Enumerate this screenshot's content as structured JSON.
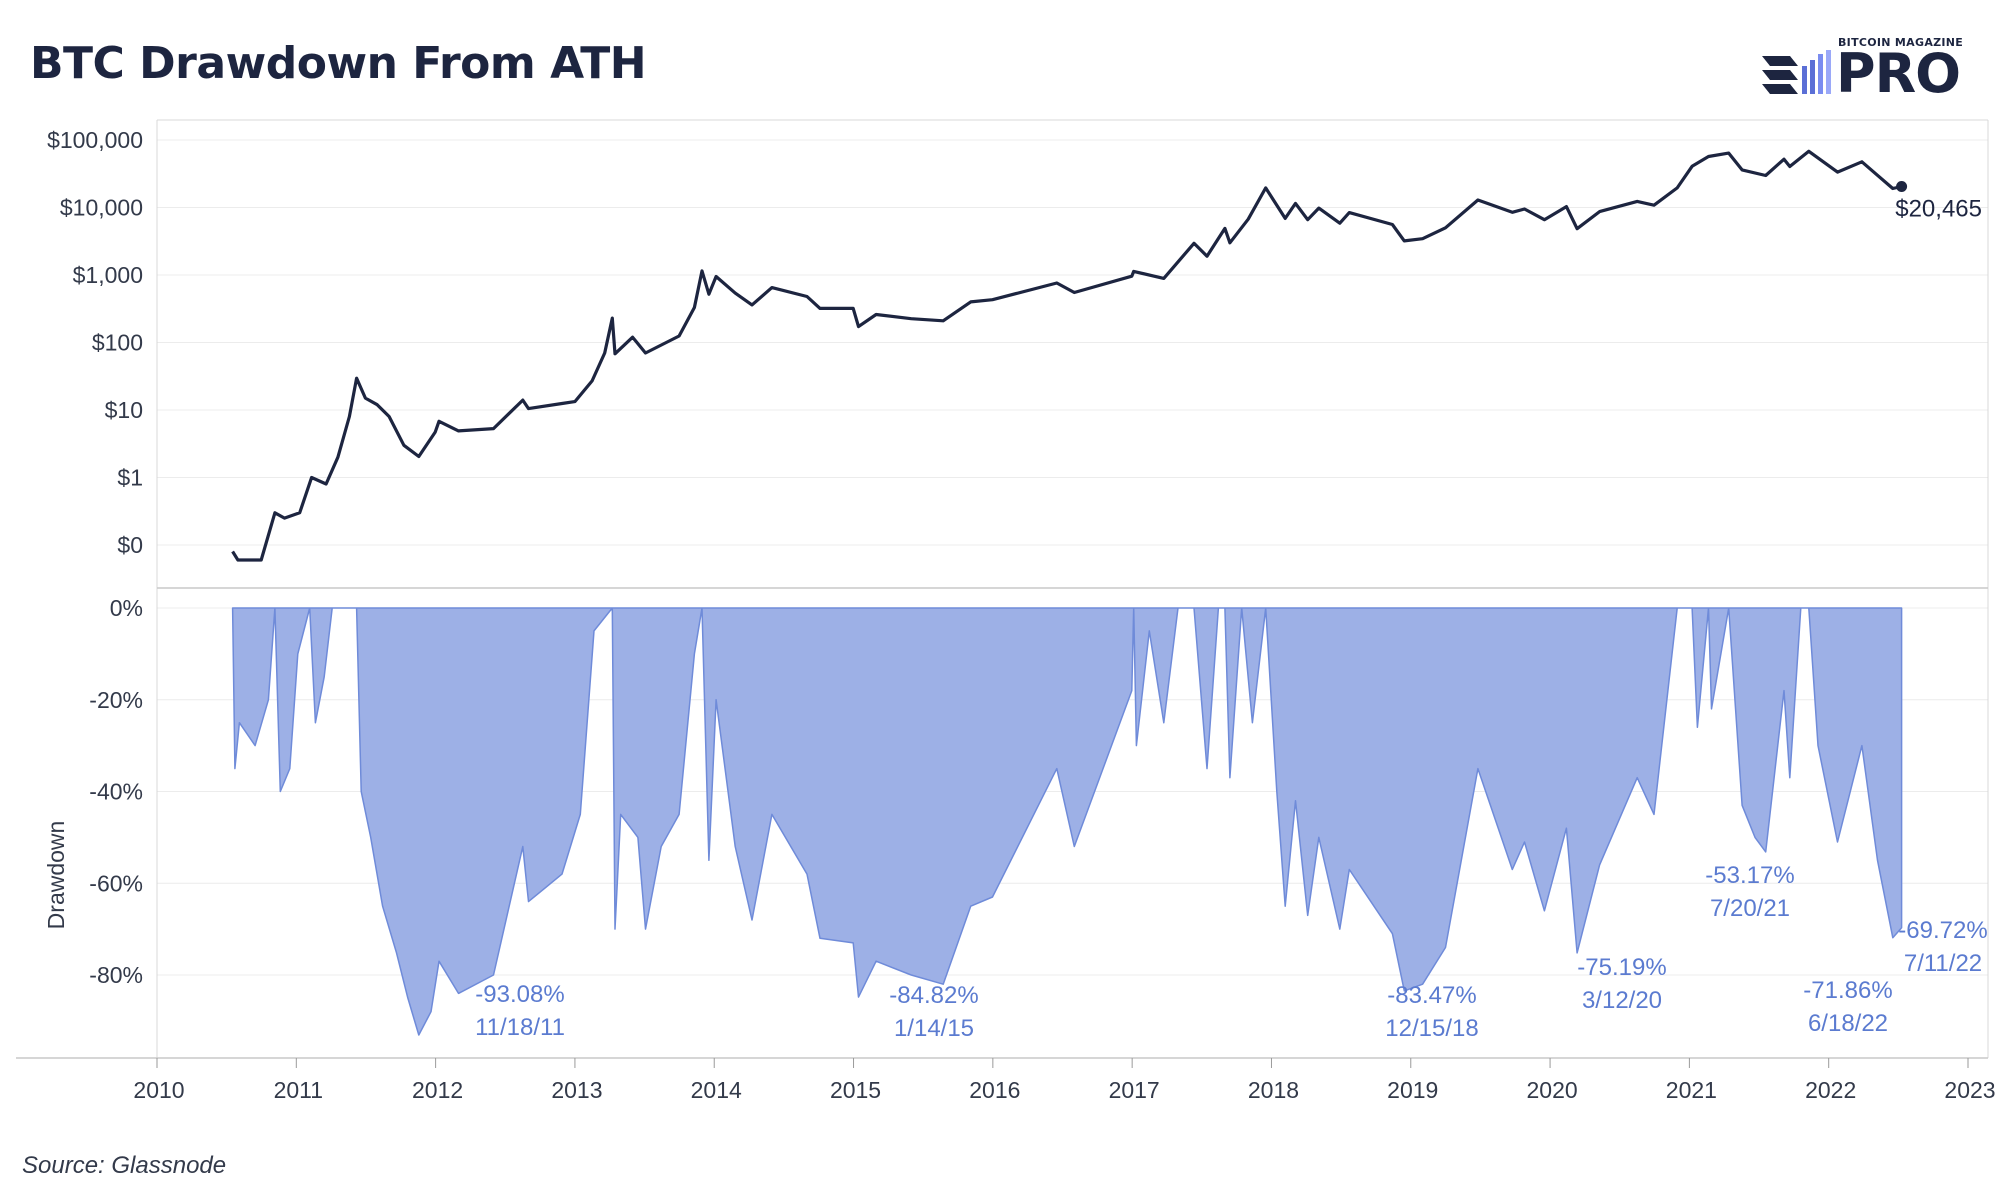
{
  "title": "BTC Drawdown From ATH",
  "logo": {
    "small_text": "BITCOIN MAGAZINE",
    "big_text": "PRO"
  },
  "source": "Source: Glassnode",
  "colors": {
    "price_line": "#1d2540",
    "drawdown_fill": "#9db0e6",
    "drawdown_stroke": "#6f8bd9",
    "annotation": "#5b7bd0",
    "axis_text": "#333a4a"
  },
  "chart_data": [
    {
      "type": "line",
      "title": "",
      "series": [
        {
          "name": "",
          "points": [
            [
              "2010-07-18",
              0.08
            ],
            [
              "2010-08-01",
              0.06
            ],
            [
              "2010-10-01",
              0.06
            ],
            [
              "2010-11-06",
              0.3
            ],
            [
              "2010-12-01",
              0.25
            ],
            [
              "2011-01-10",
              0.3
            ],
            [
              "2011-02-10",
              1.0
            ],
            [
              "2011-03-20",
              0.8
            ],
            [
              "2011-04-20",
              2.0
            ],
            [
              "2011-05-20",
              8.0
            ],
            [
              "2011-06-08",
              29.6
            ],
            [
              "2011-07-01",
              15.0
            ],
            [
              "2011-08-01",
              12.0
            ],
            [
              "2011-09-01",
              8.0
            ],
            [
              "2011-10-10",
              3.0
            ],
            [
              "2011-11-18",
              2.05
            ],
            [
              "2011-12-31",
              4.7
            ],
            [
              "2012-01-10",
              6.8
            ],
            [
              "2012-03-01",
              4.9
            ],
            [
              "2012-06-01",
              5.3
            ],
            [
              "2012-08-17",
              14.0
            ],
            [
              "2012-09-01",
              10.5
            ],
            [
              "2012-11-28",
              12.5
            ],
            [
              "2013-01-01",
              13.3
            ],
            [
              "2013-02-15",
              27.0
            ],
            [
              "2013-03-20",
              70.0
            ],
            [
              "2013-04-09",
              230.0
            ],
            [
              "2013-04-16",
              68.0
            ],
            [
              "2013-06-01",
              120.0
            ],
            [
              "2013-07-05",
              70.0
            ],
            [
              "2013-10-01",
              125.0
            ],
            [
              "2013-11-10",
              330.0
            ],
            [
              "2013-11-30",
              1150.0
            ],
            [
              "2013-12-18",
              520.0
            ],
            [
              "2014-01-06",
              950.0
            ],
            [
              "2014-02-25",
              540.0
            ],
            [
              "2014-04-10",
              360.0
            ],
            [
              "2014-06-01",
              650.0
            ],
            [
              "2014-09-01",
              480.0
            ],
            [
              "2014-10-05",
              320.0
            ],
            [
              "2014-12-31",
              320.0
            ],
            [
              "2015-01-14",
              172.0
            ],
            [
              "2015-03-01",
              260.0
            ],
            [
              "2015-06-01",
              225.0
            ],
            [
              "2015-08-24",
              210.0
            ],
            [
              "2015-11-04",
              400.0
            ],
            [
              "2015-12-31",
              430.0
            ],
            [
              "2016-06-17",
              760.0
            ],
            [
              "2016-08-02",
              550.0
            ],
            [
              "2016-12-31",
              960.0
            ],
            [
              "2017-01-05",
              1130.0
            ],
            [
              "2017-03-25",
              890.0
            ],
            [
              "2017-06-12",
              2950.0
            ],
            [
              "2017-07-16",
              1900.0
            ],
            [
              "2017-09-01",
              4900.0
            ],
            [
              "2017-09-14",
              3000.0
            ],
            [
              "2017-11-01",
              6700.0
            ],
            [
              "2017-12-17",
              19500.0
            ],
            [
              "2018-02-06",
              6900.0
            ],
            [
              "2018-03-05",
              11500.0
            ],
            [
              "2018-04-06",
              6600.0
            ],
            [
              "2018-05-05",
              9800.0
            ],
            [
              "2018-06-29",
              5850.0
            ],
            [
              "2018-07-24",
              8400.0
            ],
            [
              "2018-11-14",
              5600.0
            ],
            [
              "2018-12-15",
              3200.0
            ],
            [
              "2019-02-01",
              3450.0
            ],
            [
              "2019-04-02",
              5000.0
            ],
            [
              "2019-06-26",
              12900.0
            ],
            [
              "2019-09-24",
              8500.0
            ],
            [
              "2019-10-26",
              9500.0
            ],
            [
              "2019-12-17",
              6600.0
            ],
            [
              "2020-02-13",
              10300.0
            ],
            [
              "2020-03-12",
              4850.0
            ],
            [
              "2020-05-10",
              8700.0
            ],
            [
              "2020-08-17",
              12300.0
            ],
            [
              "2020-09-30",
              10800.0
            ],
            [
              "2020-11-30",
              19500.0
            ],
            [
              "2021-01-08",
              40800.0
            ],
            [
              "2021-02-20",
              57000.0
            ],
            [
              "2021-04-14",
              64000.0
            ],
            [
              "2021-05-19",
              36000.0
            ],
            [
              "2021-07-20",
              29800.0
            ],
            [
              "2021-09-06",
              52000.0
            ],
            [
              "2021-09-21",
              40500.0
            ],
            [
              "2021-11-10",
              68000.0
            ],
            [
              "2022-01-24",
              33500.0
            ],
            [
              "2022-03-29",
              47500.0
            ],
            [
              "2022-05-09",
              30000.0
            ],
            [
              "2022-06-18",
              19100.0
            ],
            [
              "2022-07-11",
              20465.0
            ]
          ]
        }
      ],
      "xlim": [
        "2010-01-01",
        "2023-01-01"
      ],
      "y_scale": "log",
      "y_ticks": [
        {
          "value": 0.1,
          "label": "$0"
        },
        {
          "value": 1,
          "label": "$1"
        },
        {
          "value": 10,
          "label": "$10"
        },
        {
          "value": 100,
          "label": "$100"
        },
        {
          "value": 1000,
          "label": "$1,000"
        },
        {
          "value": 10000,
          "label": "$10,000"
        },
        {
          "value": 100000,
          "label": "$100,000"
        }
      ],
      "last_value_label": "$20,465",
      "grid": true
    },
    {
      "type": "area",
      "title": "",
      "ylabel": "Drawdown",
      "ylim": [
        -93,
        0
      ],
      "y_ticks": [
        {
          "value": 0,
          "label": "0%"
        },
        {
          "value": -20,
          "label": "-20%"
        },
        {
          "value": -40,
          "label": "-40%"
        },
        {
          "value": -60,
          "label": "-60%"
        },
        {
          "value": -80,
          "label": "-80%"
        }
      ],
      "x_ticks": [
        "2010",
        "2011",
        "2012",
        "2013",
        "2014",
        "2015",
        "2016",
        "2017",
        "2018",
        "2019",
        "2020",
        "2021",
        "2022",
        "2023"
      ],
      "series": [
        {
          "name": "",
          "points": [
            [
              "2010-07-18",
              0
            ],
            [
              "2010-07-24",
              -35
            ],
            [
              "2010-08-05",
              -25
            ],
            [
              "2010-09-15",
              -30
            ],
            [
              "2010-10-20",
              -20
            ],
            [
              "2010-11-06",
              0
            ],
            [
              "2010-11-20",
              -40
            ],
            [
              "2010-12-15",
              -35
            ],
            [
              "2011-01-05",
              -10
            ],
            [
              "2011-02-05",
              0
            ],
            [
              "2011-02-20",
              -25
            ],
            [
              "2011-03-15",
              -15
            ],
            [
              "2011-04-05",
              0
            ],
            [
              "2011-06-08",
              0
            ],
            [
              "2011-06-20",
              -40
            ],
            [
              "2011-07-15",
              -50
            ],
            [
              "2011-08-15",
              -65
            ],
            [
              "2011-09-20",
              -75
            ],
            [
              "2011-10-20",
              -85
            ],
            [
              "2011-11-18",
              -93.08
            ],
            [
              "2011-12-20",
              -88
            ],
            [
              "2012-01-10",
              -77
            ],
            [
              "2012-03-01",
              -84
            ],
            [
              "2012-06-01",
              -80
            ],
            [
              "2012-08-17",
              -52
            ],
            [
              "2012-09-01",
              -64
            ],
            [
              "2012-11-28",
              -58
            ],
            [
              "2013-01-15",
              -45
            ],
            [
              "2013-02-20",
              -5
            ],
            [
              "2013-04-09",
              0
            ],
            [
              "2013-04-16",
              -70
            ],
            [
              "2013-05-01",
              -45
            ],
            [
              "2013-06-15",
              -50
            ],
            [
              "2013-07-05",
              -70
            ],
            [
              "2013-08-15",
              -52
            ],
            [
              "2013-10-01",
              -45
            ],
            [
              "2013-11-10",
              -10
            ],
            [
              "2013-11-30",
              0
            ],
            [
              "2013-12-18",
              -55
            ],
            [
              "2014-01-06",
              -20
            ],
            [
              "2014-02-25",
              -52
            ],
            [
              "2014-04-10",
              -68
            ],
            [
              "2014-06-01",
              -45
            ],
            [
              "2014-09-01",
              -58
            ],
            [
              "2014-10-05",
              -72
            ],
            [
              "2014-12-31",
              -73
            ],
            [
              "2015-01-14",
              -84.82
            ],
            [
              "2015-03-01",
              -77
            ],
            [
              "2015-06-01",
              -80
            ],
            [
              "2015-08-24",
              -82
            ],
            [
              "2015-11-04",
              -65
            ],
            [
              "2015-12-31",
              -63
            ],
            [
              "2016-06-17",
              -35
            ],
            [
              "2016-08-02",
              -52
            ],
            [
              "2016-12-31",
              -18
            ],
            [
              "2017-01-05",
              0
            ],
            [
              "2017-01-12",
              -30
            ],
            [
              "2017-02-15",
              -5
            ],
            [
              "2017-03-25",
              -25
            ],
            [
              "2017-05-01",
              0
            ],
            [
              "2017-06-12",
              0
            ],
            [
              "2017-07-16",
              -35
            ],
            [
              "2017-08-15",
              0
            ],
            [
              "2017-09-01",
              0
            ],
            [
              "2017-09-14",
              -37
            ],
            [
              "2017-10-15",
              0
            ],
            [
              "2017-11-12",
              -25
            ],
            [
              "2017-12-17",
              0
            ],
            [
              "2018-01-15",
              -40
            ],
            [
              "2018-02-06",
              -65
            ],
            [
              "2018-03-05",
              -42
            ],
            [
              "2018-04-06",
              -67
            ],
            [
              "2018-05-05",
              -50
            ],
            [
              "2018-06-29",
              -70
            ],
            [
              "2018-07-24",
              -57
            ],
            [
              "2018-11-14",
              -71
            ],
            [
              "2018-12-15",
              -83.47
            ],
            [
              "2019-02-01",
              -82
            ],
            [
              "2019-04-02",
              -74
            ],
            [
              "2019-06-26",
              -35
            ],
            [
              "2019-09-24",
              -57
            ],
            [
              "2019-10-26",
              -51
            ],
            [
              "2019-12-17",
              -66
            ],
            [
              "2020-02-13",
              -48
            ],
            [
              "2020-03-12",
              -75.19
            ],
            [
              "2020-05-10",
              -56
            ],
            [
              "2020-08-17",
              -37
            ],
            [
              "2020-09-30",
              -45
            ],
            [
              "2020-11-30",
              0
            ],
            [
              "2021-01-08",
              0
            ],
            [
              "2021-01-22",
              -26
            ],
            [
              "2021-02-20",
              0
            ],
            [
              "2021-02-28",
              -22
            ],
            [
              "2021-04-14",
              0
            ],
            [
              "2021-05-19",
              -43
            ],
            [
              "2021-06-22",
              -50
            ],
            [
              "2021-07-20",
              -53.17
            ],
            [
              "2021-09-06",
              -18
            ],
            [
              "2021-09-21",
              -37
            ],
            [
              "2021-10-20",
              0
            ],
            [
              "2021-11-10",
              0
            ],
            [
              "2021-12-04",
              -30
            ],
            [
              "2022-01-24",
              -51
            ],
            [
              "2022-03-29",
              -30
            ],
            [
              "2022-05-09",
              -55
            ],
            [
              "2022-06-18",
              -71.86
            ],
            [
              "2022-07-11",
              -69.72
            ]
          ]
        }
      ],
      "annotations": [
        {
          "date": "2011-11-18",
          "value_label": "-93.08%",
          "date_label": "11/18/11"
        },
        {
          "date": "2015-01-14",
          "value_label": "-84.82%",
          "date_label": "1/14/15"
        },
        {
          "date": "2018-12-15",
          "value_label": "-83.47%",
          "date_label": "12/15/18"
        },
        {
          "date": "2020-03-12",
          "value_label": "-75.19%",
          "date_label": "3/12/20"
        },
        {
          "date": "2021-07-20",
          "value_label": "-53.17%",
          "date_label": "7/20/21"
        },
        {
          "date": "2022-06-18",
          "value_label": "-71.86%",
          "date_label": "6/18/22"
        },
        {
          "date": "2022-07-11",
          "value_label": "-69.72%",
          "date_label": "7/11/22"
        }
      ],
      "grid": true
    }
  ]
}
